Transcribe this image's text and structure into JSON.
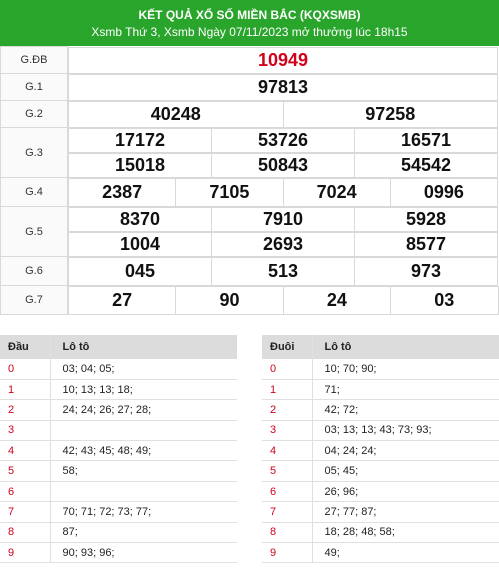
{
  "header": {
    "title": "KẾT QUẢ XỔ SỐ MIỀN BẮC (KQXSMB)",
    "subtitle": "Xsmb Thứ 3, Xsmb Ngày 07/11/2023 mở thưởng lúc 18h15"
  },
  "prizes": [
    {
      "label": "G.ĐB",
      "rows": [
        [
          "10949"
        ]
      ]
    },
    {
      "label": "G.1",
      "rows": [
        [
          "97813"
        ]
      ]
    },
    {
      "label": "G.2",
      "rows": [
        [
          "40248",
          "97258"
        ]
      ]
    },
    {
      "label": "G.3",
      "rows": [
        [
          "17172",
          "53726",
          "16571"
        ],
        [
          "15018",
          "50843",
          "54542"
        ]
      ]
    },
    {
      "label": "G.4",
      "rows": [
        [
          "2387",
          "7105",
          "7024",
          "0996"
        ]
      ]
    },
    {
      "label": "G.5",
      "rows": [
        [
          "8370",
          "7910",
          "5928"
        ],
        [
          "1004",
          "2693",
          "8577"
        ]
      ]
    },
    {
      "label": "G.6",
      "rows": [
        [
          "045",
          "513",
          "973"
        ]
      ]
    },
    {
      "label": "G.7",
      "rows": [
        [
          "27",
          "90",
          "24",
          "03"
        ]
      ]
    }
  ],
  "dau": {
    "col1": "Đầu",
    "col2": "Lô tô",
    "rows": [
      {
        "k": "0",
        "v": "03; 04; 05;"
      },
      {
        "k": "1",
        "v": "10; 13; 13; 18;"
      },
      {
        "k": "2",
        "v": "24; 24; 26; 27; 28;"
      },
      {
        "k": "3",
        "v": ""
      },
      {
        "k": "4",
        "v": "42; 43; 45; 48; 49;"
      },
      {
        "k": "5",
        "v": "58;"
      },
      {
        "k": "6",
        "v": ""
      },
      {
        "k": "7",
        "v": "70; 71; 72; 73; 77;"
      },
      {
        "k": "8",
        "v": "87;"
      },
      {
        "k": "9",
        "v": "90; 93; 96;"
      }
    ]
  },
  "duoi": {
    "col1": "Đuôi",
    "col2": "Lô tô",
    "rows": [
      {
        "k": "0",
        "v": "10; 70; 90;"
      },
      {
        "k": "1",
        "v": "71;"
      },
      {
        "k": "2",
        "v": "42; 72;"
      },
      {
        "k": "3",
        "v": "03; 13; 13; 43; 73; 93;"
      },
      {
        "k": "4",
        "v": "04; 24; 24;"
      },
      {
        "k": "5",
        "v": "05; 45;"
      },
      {
        "k": "6",
        "v": "26; 96;"
      },
      {
        "k": "7",
        "v": "27; 77; 87;"
      },
      {
        "k": "8",
        "v": "18; 28; 48; 58;"
      },
      {
        "k": "9",
        "v": "49;"
      }
    ]
  },
  "colors": {
    "header": "#2aa52c",
    "special": "#d0021b",
    "key": "#d0021b"
  }
}
